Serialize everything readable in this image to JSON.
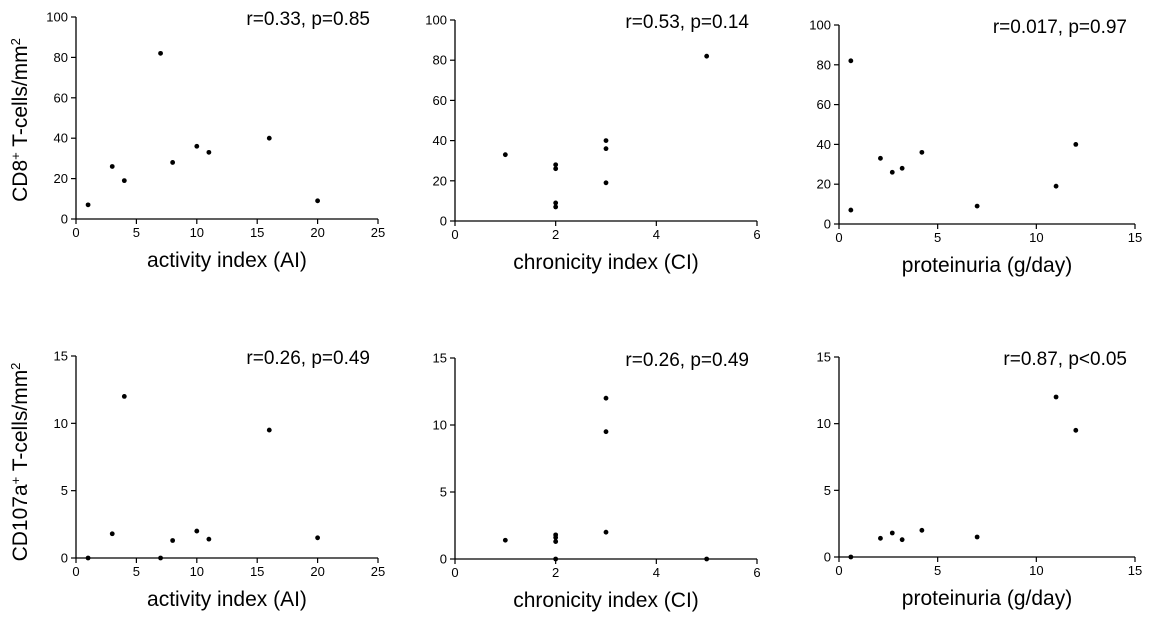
{
  "figure": {
    "row_labels": [
      {
        "pre": "CD8",
        "sup": "+",
        "mid": " T-cells/mm",
        "sup2": "2"
      },
      {
        "pre": "CD107a",
        "sup": "+",
        "mid": " T-cells/mm",
        "sup2": "2"
      }
    ]
  },
  "chart_data": [
    {
      "type": "scatter",
      "title": "",
      "annotation": "r=0.33, p=0.85",
      "xlabel": "activity index (AI)",
      "ylabel": "CD8+ T-cells/mm2",
      "xlim": [
        0,
        25
      ],
      "ylim": [
        0,
        100
      ],
      "xticks": [
        0,
        5,
        10,
        15,
        20,
        25
      ],
      "yticks": [
        0,
        20,
        40,
        60,
        80,
        100
      ],
      "grid": false,
      "x": [
        1,
        3,
        4,
        7,
        8,
        10,
        11,
        16,
        20
      ],
      "y": [
        7,
        26,
        19,
        82,
        28,
        36,
        33,
        40,
        9
      ]
    },
    {
      "type": "scatter",
      "title": "",
      "annotation": "r=0.53, p=0.14",
      "xlabel": "chronicity index (CI)",
      "ylabel": "CD8+ T-cells/mm2",
      "xlim": [
        0,
        6
      ],
      "ylim": [
        0,
        100
      ],
      "xticks": [
        0,
        2,
        4,
        6
      ],
      "yticks": [
        0,
        20,
        40,
        60,
        80,
        100
      ],
      "grid": false,
      "x": [
        1,
        2,
        2,
        2,
        2,
        3,
        3,
        3,
        5
      ],
      "y": [
        33,
        28,
        26,
        9,
        7,
        40,
        36,
        19,
        82
      ]
    },
    {
      "type": "scatter",
      "title": "",
      "annotation": "r=0.017, p=0.97",
      "xlabel": "proteinuria (g/day)",
      "ylabel": "CD8+ T-cells/mm2",
      "xlim": [
        0,
        15
      ],
      "ylim": [
        0,
        100
      ],
      "xticks": [
        0,
        5,
        10,
        15
      ],
      "yticks": [
        0,
        20,
        40,
        60,
        80,
        100
      ],
      "grid": false,
      "x": [
        0.6,
        0.6,
        2.1,
        2.7,
        3.2,
        4.2,
        7.0,
        11.0,
        12.0
      ],
      "y": [
        82,
        7,
        33,
        26,
        28,
        36,
        9,
        19,
        40
      ]
    },
    {
      "type": "scatter",
      "title": "",
      "annotation": "r=0.26, p=0.49",
      "xlabel": "activity index (AI)",
      "ylabel": "CD107a+ T-cells/mm2",
      "xlim": [
        0,
        25
      ],
      "ylim": [
        0,
        15
      ],
      "xticks": [
        0,
        5,
        10,
        15,
        20,
        25
      ],
      "yticks": [
        0,
        5,
        10,
        15
      ],
      "grid": false,
      "x": [
        1,
        3,
        4,
        7,
        8,
        10,
        11,
        16,
        20
      ],
      "y": [
        0,
        1.8,
        12,
        0,
        1.3,
        2,
        1.4,
        9.5,
        1.5
      ]
    },
    {
      "type": "scatter",
      "title": "",
      "annotation": "r=0.26, p=0.49",
      "xlabel": "chronicity index (CI)",
      "ylabel": "CD107a+ T-cells/mm2",
      "xlim": [
        0,
        6
      ],
      "ylim": [
        0,
        15
      ],
      "xticks": [
        0,
        2,
        4,
        6
      ],
      "yticks": [
        0,
        5,
        10,
        15
      ],
      "grid": false,
      "x": [
        1,
        2,
        2,
        2,
        2,
        3,
        3,
        3,
        5
      ],
      "y": [
        1.4,
        1.8,
        1.6,
        1.3,
        0,
        12,
        9.5,
        2,
        0
      ]
    },
    {
      "type": "scatter",
      "title": "",
      "annotation": "r=0.87, p<0.05",
      "xlabel": "proteinuria (g/day)",
      "ylabel": "CD107a+ T-cells/mm2",
      "xlim": [
        0,
        15
      ],
      "ylim": [
        0,
        15
      ],
      "xticks": [
        0,
        5,
        10,
        15
      ],
      "yticks": [
        0,
        5,
        10,
        15
      ],
      "grid": false,
      "x": [
        0.6,
        2.1,
        2.7,
        3.2,
        4.2,
        7.0,
        11.0,
        12.0
      ],
      "y": [
        0,
        1.4,
        1.8,
        1.3,
        2,
        1.5,
        12,
        9.5
      ]
    }
  ]
}
